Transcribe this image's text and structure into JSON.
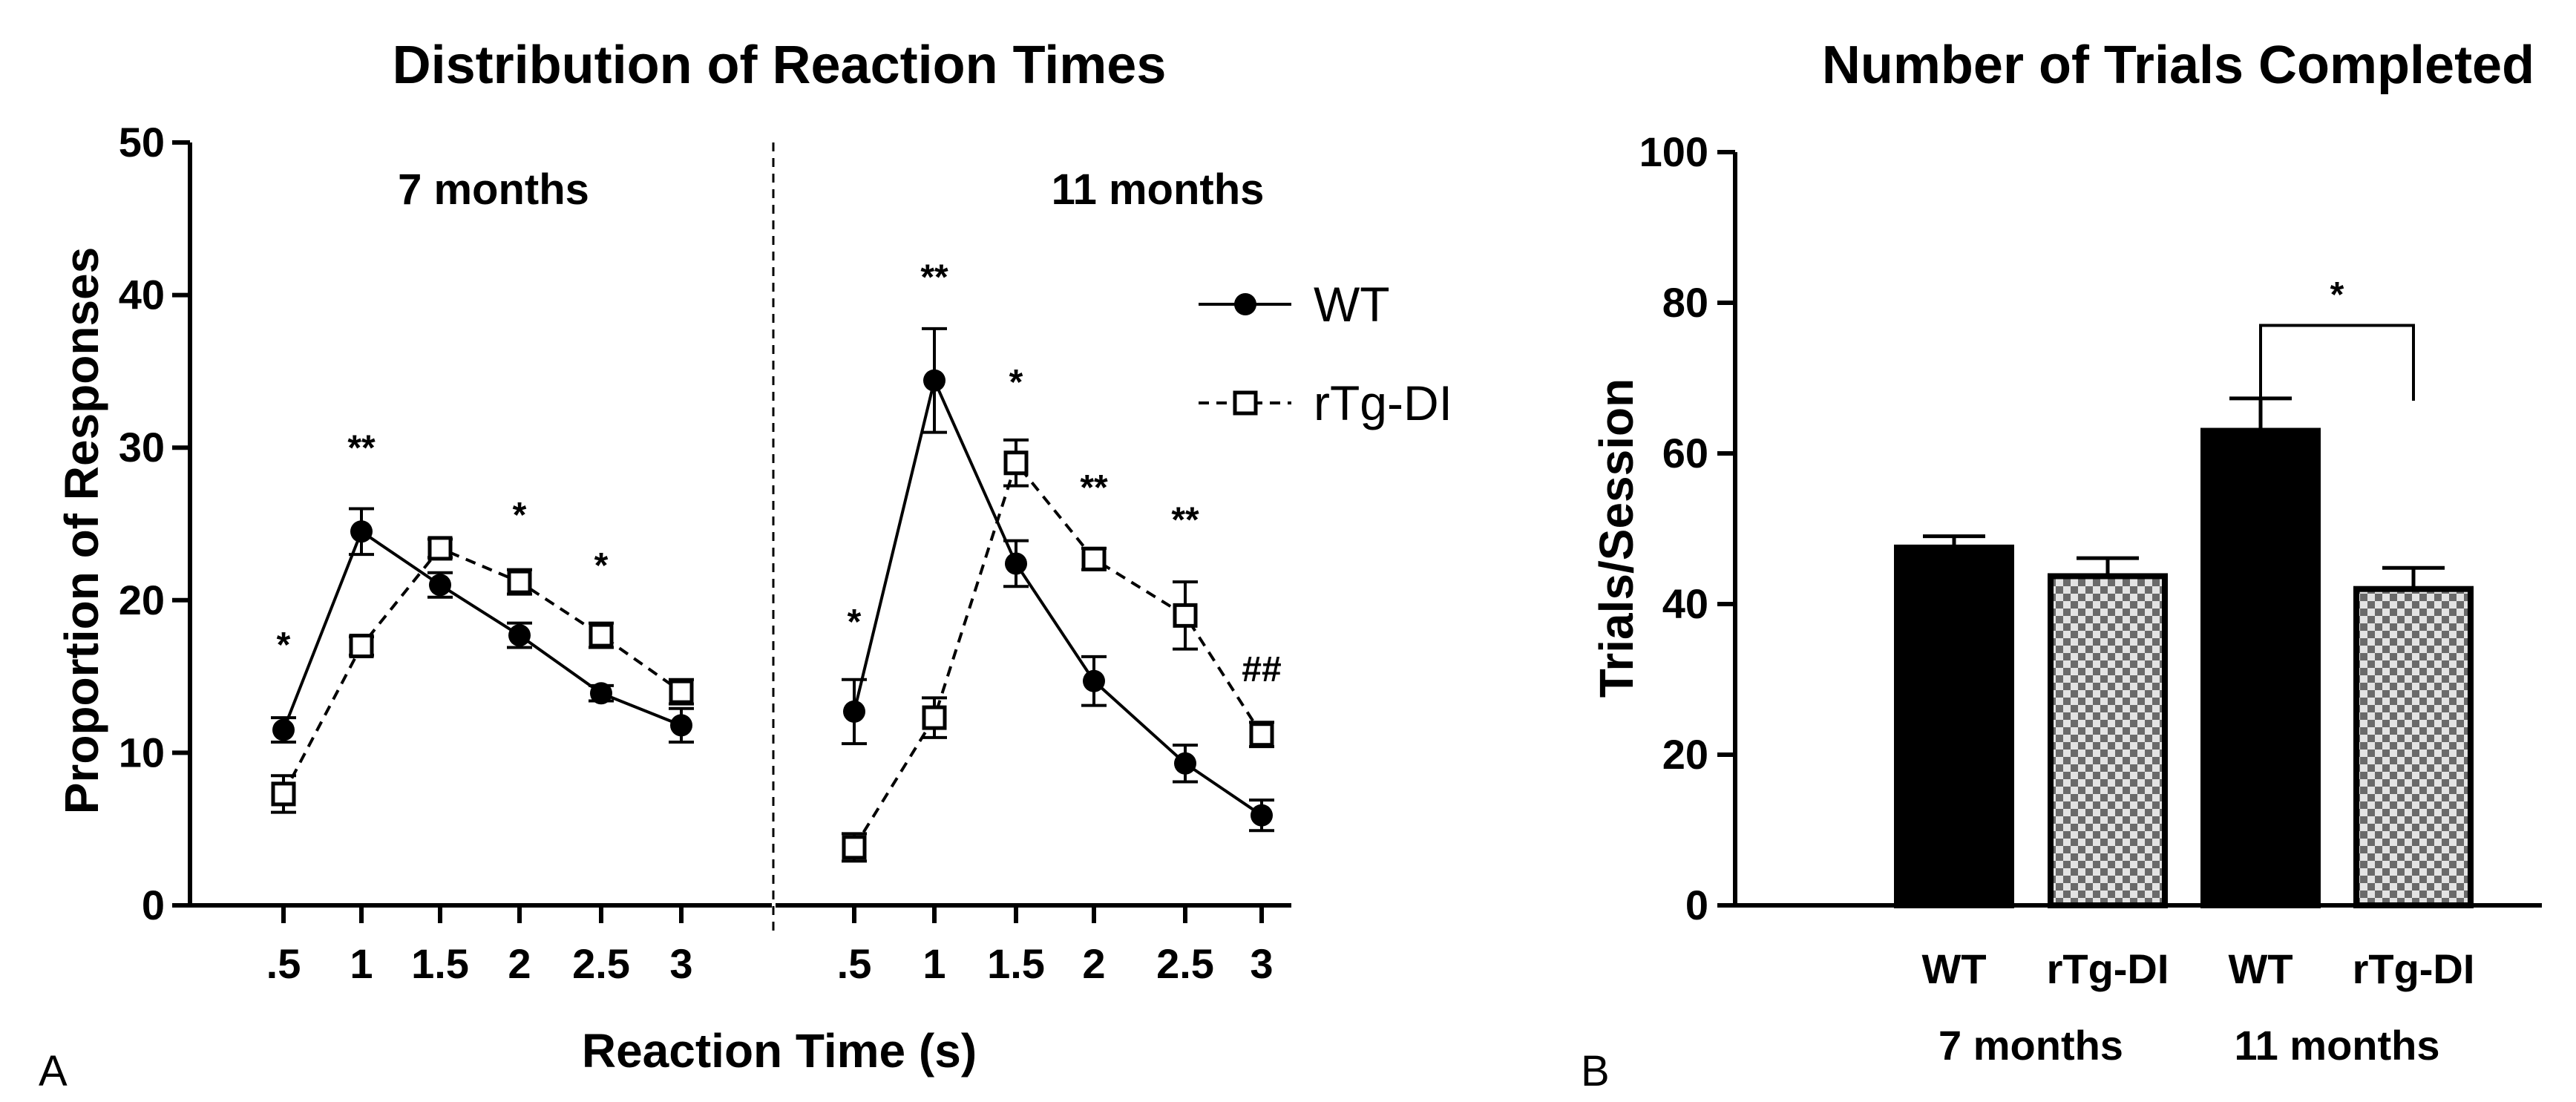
{
  "chart_data": [
    {
      "type": "line",
      "panel_letter": "A",
      "title": "Distribution of Reaction Times",
      "xlabel": "Reaction Time (s)",
      "ylabel": "Proportion of Responses",
      "ylim": [
        0,
        50
      ],
      "yticks": [
        "0",
        "10",
        "20",
        "30",
        "40",
        "50"
      ],
      "legend_position": "right",
      "panels": [
        {
          "label": "7 months",
          "x": [
            ".5",
            "1",
            "1.5",
            "2",
            "2.5",
            "3"
          ],
          "series": [
            {
              "name": "WT",
              "marker": "circle",
              "line": "solid",
              "values": [
                11.5,
                24.5,
                21,
                17.7,
                13.9,
                11.8
              ],
              "errors": [
                0.8,
                1.5,
                0.8,
                0.8,
                0.5,
                1.1
              ]
            },
            {
              "name": "rTg-DI",
              "marker": "square-open",
              "line": "dashed",
              "values": [
                7.3,
                17,
                23.4,
                21.2,
                17.7,
                14
              ],
              "errors": [
                1.2,
                0.6,
                0.6,
                0.8,
                0.8,
                0.8
              ]
            }
          ],
          "annotations": [
            {
              "x_index": 0,
              "y": 16.3,
              "text": "*"
            },
            {
              "x_index": 1,
              "y": 29.2,
              "text": "**"
            },
            {
              "x_index": 3,
              "y": 24.8,
              "text": "*"
            },
            {
              "x_index": 4,
              "y": 21.5,
              "text": "*"
            }
          ]
        },
        {
          "label": "11 months",
          "x": [
            ".5",
            "1",
            "1.5",
            "2",
            "2.5",
            "3"
          ],
          "series": [
            {
              "name": "WT",
              "marker": "circle",
              "line": "solid",
              "values": [
                12.7,
                34.4,
                22.4,
                14.7,
                9.3,
                5.9
              ],
              "errors": [
                2.1,
                3.4,
                1.5,
                1.6,
                1.2,
                1
              ]
            },
            {
              "name": "rTg-DI",
              "marker": "square-open",
              "line": "dashed",
              "values": [
                3.8,
                12.3,
                29,
                22.7,
                19,
                11.2
              ],
              "errors": [
                0.9,
                1.3,
                1.5,
                0.7,
                2.2,
                0.8
              ]
            }
          ],
          "annotations": [
            {
              "x_index": 0,
              "y": 17.8,
              "text": "*"
            },
            {
              "x_index": 1,
              "y": 40.4,
              "text": "**"
            },
            {
              "x_index": 2,
              "y": 33.5,
              "text": "*"
            },
            {
              "x_index": 3,
              "y": 26.6,
              "text": "**"
            },
            {
              "x_index": 4,
              "y": 24.5,
              "text": "**"
            },
            {
              "x_index": 5,
              "y": 14.7,
              "text": "##"
            }
          ]
        }
      ]
    },
    {
      "type": "bar",
      "panel_letter": "B",
      "title": "Number of Trials Completed",
      "ylabel": "Trials/Session",
      "ylim": [
        0,
        100
      ],
      "yticks": [
        "0",
        "20",
        "40",
        "60",
        "80",
        "100"
      ],
      "categories": [
        "WT",
        "rTg-DI",
        "WT",
        "rTg-DI"
      ],
      "groups": [
        "7 months",
        "11 months"
      ],
      "values": [
        47.5,
        43.7,
        63,
        42
      ],
      "errors": [
        1.5,
        2.4,
        4.3,
        2.8
      ],
      "fills": [
        "solid",
        "checkered",
        "solid",
        "checkered"
      ],
      "significance": {
        "from_index": 2,
        "to_index": 3,
        "text": "*"
      }
    }
  ]
}
